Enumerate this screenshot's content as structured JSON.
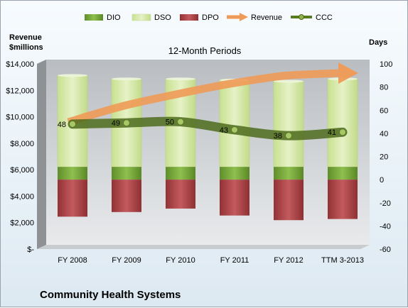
{
  "chart_data": {
    "type": "bar",
    "title": "12-Month Periods",
    "company": "Community Health Systems",
    "left_axis": {
      "label_line1": "Revenue",
      "label_line2": "$millions",
      "min": 0,
      "max": 14000,
      "ticks": [
        {
          "value": 0,
          "label": "$-"
        },
        {
          "value": 2000,
          "label": "$2,000"
        },
        {
          "value": 4000,
          "label": "$4,000"
        },
        {
          "value": 6000,
          "label": "$6,000"
        },
        {
          "value": 8000,
          "label": "$8,000"
        },
        {
          "value": 10000,
          "label": "$10,000"
        },
        {
          "value": 12000,
          "label": "$12,000"
        },
        {
          "value": 14000,
          "label": "$14,000"
        }
      ]
    },
    "right_axis": {
      "label": "Days",
      "min": -60,
      "max": 100,
      "ticks": [
        {
          "value": -60,
          "label": "-60"
        },
        {
          "value": -40,
          "label": "-40"
        },
        {
          "value": -20,
          "label": "-20"
        },
        {
          "value": 0,
          "label": "0"
        },
        {
          "value": 20,
          "label": "20"
        },
        {
          "value": 40,
          "label": "40"
        },
        {
          "value": 60,
          "label": "60"
        },
        {
          "value": 80,
          "label": "80"
        },
        {
          "value": 100,
          "label": "100"
        }
      ]
    },
    "categories": [
      "FY 2008",
      "FY 2009",
      "FY 2010",
      "FY 2011",
      "FY 2012",
      "TTM 3-2013"
    ],
    "series": [
      {
        "name": "DIO",
        "axis": "days",
        "color": "#77a63b",
        "values": [
          11,
          11,
          11,
          11,
          11,
          11
        ]
      },
      {
        "name": "DSO",
        "axis": "days",
        "color": "#d4e8a9",
        "values": [
          79,
          76,
          76,
          75,
          74,
          76
        ]
      },
      {
        "name": "DPO",
        "axis": "days",
        "color": "#b3464a",
        "values": [
          -32,
          -28,
          -25,
          -31,
          -35,
          -34
        ]
      },
      {
        "name": "Revenue",
        "axis": "revenue",
        "color": "#ef9a56",
        "values": [
          9600,
          10800,
          11700,
          12500,
          13100,
          13300
        ]
      },
      {
        "name": "CCC",
        "axis": "days",
        "color": "#5a7a22",
        "values": [
          48,
          49,
          50,
          43,
          38,
          41
        ]
      }
    ],
    "grid": false,
    "legend_position": "top"
  }
}
